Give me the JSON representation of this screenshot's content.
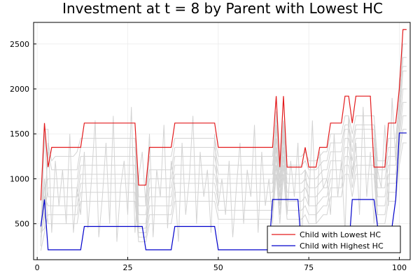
{
  "chart_data": {
    "type": "line",
    "title": "Investment at t = 8 by Parent with Lowest HC",
    "xlabel": "",
    "ylabel": "",
    "xlim": [
      -1,
      103
    ],
    "ylim": [
      100,
      2740
    ],
    "xticks": [
      0,
      25,
      50,
      75,
      100
    ],
    "yticks": [
      500,
      1000,
      1500,
      2000,
      2500
    ],
    "grid": true,
    "legend_position": "bottom-right",
    "colors": {
      "lowest": "#e31a1c",
      "highest": "#0000cc",
      "background": "#d3d3d3"
    },
    "series": [
      {
        "name": "Child with Lowest HC",
        "color": "#e31a1c",
        "points": [
          [
            1,
            760
          ],
          [
            2,
            1620
          ],
          [
            3,
            1130
          ],
          [
            4,
            1350
          ],
          [
            12,
            1350
          ],
          [
            13,
            1620
          ],
          [
            27,
            1620
          ],
          [
            28,
            930
          ],
          [
            30,
            930
          ],
          [
            31,
            1350
          ],
          [
            37,
            1350
          ],
          [
            38,
            1620
          ],
          [
            49,
            1620
          ],
          [
            50,
            1350
          ],
          [
            65,
            1350
          ],
          [
            66,
            1920
          ],
          [
            67,
            1130
          ],
          [
            68,
            1920
          ],
          [
            69,
            1130
          ],
          [
            73,
            1130
          ],
          [
            74,
            1350
          ],
          [
            75,
            1130
          ],
          [
            77,
            1130
          ],
          [
            78,
            1350
          ],
          [
            80,
            1350
          ],
          [
            81,
            1620
          ],
          [
            84,
            1620
          ],
          [
            85,
            1920
          ],
          [
            86,
            1920
          ],
          [
            87,
            1620
          ],
          [
            88,
            1920
          ],
          [
            92,
            1920
          ],
          [
            93,
            1130
          ],
          [
            96,
            1130
          ],
          [
            97,
            1620
          ],
          [
            99,
            1620
          ],
          [
            100,
            2000
          ],
          [
            101,
            2660
          ],
          [
            102,
            2660
          ]
        ]
      },
      {
        "name": "Child with Highest HC",
        "color": "#0000cc",
        "points": [
          [
            1,
            470
          ],
          [
            2,
            770
          ],
          [
            3,
            210
          ],
          [
            12,
            210
          ],
          [
            13,
            470
          ],
          [
            29,
            470
          ],
          [
            30,
            210
          ],
          [
            37,
            210
          ],
          [
            38,
            470
          ],
          [
            49,
            470
          ],
          [
            50,
            210
          ],
          [
            64,
            210
          ],
          [
            65,
            770
          ],
          [
            72,
            770
          ],
          [
            73,
            210
          ],
          [
            86,
            210
          ],
          [
            87,
            770
          ],
          [
            93,
            770
          ],
          [
            94,
            470
          ],
          [
            95,
            210
          ],
          [
            97,
            210
          ],
          [
            98,
            470
          ],
          [
            99,
            770
          ],
          [
            100,
            1510
          ],
          [
            102,
            1510
          ]
        ]
      }
    ],
    "background_series": [
      {
        "values": [
          400,
          450,
          1400,
          1200,
          1250,
          1250,
          1250,
          1250,
          1250,
          1250,
          1300,
          1450,
          1450,
          1450,
          1450,
          1450,
          1450,
          1450,
          1450,
          1450,
          1450,
          1450,
          1450,
          1450,
          1450,
          1450,
          1450,
          800,
          800,
          800,
          1250,
          1250,
          1250,
          1250,
          1250,
          1250,
          1250,
          1450,
          1450,
          1450,
          1450,
          1450,
          1450,
          1450,
          1450,
          1450,
          1450,
          1450,
          1450,
          1250,
          1250,
          1250,
          1250,
          1250,
          1250,
          1250,
          1250,
          1250,
          1250,
          1250,
          1250,
          1250,
          1250,
          1250,
          1250,
          1700,
          1200,
          1650,
          1250,
          1250,
          1250,
          1250,
          1250,
          1300,
          1200,
          1200,
          1200,
          1250,
          1300,
          1300,
          1500,
          1500,
          1500,
          1500,
          1700,
          1700,
          1500,
          1700,
          1700,
          1700,
          1700,
          1700,
          1700,
          1200,
          1200,
          1200,
          1450,
          1450,
          1450,
          1850,
          2500,
          2500
        ]
      },
      {
        "values": [
          300,
          700,
          1300,
          1100,
          1100,
          1100,
          1100,
          1100,
          1100,
          1100,
          1100,
          1350,
          1350,
          1350,
          1350,
          1350,
          1350,
          1350,
          1350,
          1350,
          1350,
          1350,
          1350,
          1350,
          1350,
          1350,
          1350,
          700,
          700,
          700,
          1100,
          1100,
          1100,
          1100,
          1100,
          1100,
          1100,
          1350,
          1350,
          1350,
          1350,
          1350,
          1350,
          1350,
          1350,
          1350,
          1350,
          1350,
          1350,
          1150,
          1150,
          1150,
          1150,
          1150,
          1150,
          1150,
          1150,
          1150,
          1150,
          1150,
          1150,
          1150,
          1150,
          1150,
          1150,
          1600,
          1100,
          1600,
          1150,
          1150,
          1150,
          1150,
          1150,
          1200,
          1100,
          1100,
          1100,
          1150,
          1200,
          1200,
          1400,
          1400,
          1400,
          1400,
          1600,
          1600,
          1400,
          1600,
          1600,
          1600,
          1600,
          1600,
          1600,
          1100,
          1100,
          1100,
          1350,
          1350,
          1350,
          1750,
          2350,
          2350
        ]
      },
      {
        "values": [
          450,
          900,
          1000,
          1000,
          1000,
          1000,
          1000,
          1000,
          1000,
          1000,
          1000,
          1250,
          1250,
          1250,
          1250,
          1250,
          1250,
          1250,
          1250,
          1250,
          1250,
          1250,
          1250,
          1250,
          1250,
          1250,
          1250,
          600,
          600,
          600,
          1000,
          1000,
          1000,
          1000,
          1000,
          1000,
          1000,
          1250,
          1250,
          1250,
          1250,
          1250,
          1250,
          1250,
          1250,
          1250,
          1250,
          1250,
          1250,
          1050,
          1050,
          1050,
          1050,
          1050,
          1050,
          1050,
          1050,
          1050,
          1050,
          1050,
          1050,
          1050,
          1050,
          1050,
          1050,
          1550,
          1000,
          1550,
          1050,
          1050,
          1050,
          1050,
          1050,
          1100,
          1000,
          1000,
          1000,
          1050,
          1100,
          1100,
          1300,
          1300,
          1300,
          1300,
          1550,
          1550,
          1300,
          1550,
          1550,
          1550,
          1550,
          1550,
          1550,
          1000,
          1000,
          1000,
          1250,
          1250,
          1250,
          1650,
          2200,
          2200
        ]
      },
      {
        "values": [
          350,
          600,
          900,
          900,
          900,
          900,
          900,
          900,
          900,
          900,
          900,
          1150,
          1150,
          1150,
          1150,
          1150,
          1150,
          1150,
          1150,
          1150,
          1150,
          1150,
          1150,
          1150,
          1150,
          1150,
          1150,
          500,
          500,
          500,
          900,
          900,
          900,
          900,
          900,
          900,
          900,
          1150,
          1150,
          1150,
          1150,
          1150,
          1150,
          1150,
          1150,
          1150,
          1150,
          1150,
          1150,
          950,
          950,
          950,
          950,
          950,
          950,
          950,
          950,
          950,
          950,
          950,
          950,
          950,
          950,
          950,
          950,
          1450,
          900,
          1450,
          950,
          950,
          950,
          950,
          950,
          1000,
          900,
          900,
          900,
          950,
          1000,
          1000,
          1200,
          1200,
          1200,
          1200,
          1450,
          1450,
          1200,
          1450,
          1450,
          1450,
          1450,
          1450,
          1450,
          900,
          900,
          900,
          1150,
          1150,
          1150,
          1550,
          2000,
          2000
        ]
      },
      {
        "values": [
          250,
          1500,
          800,
          800,
          800,
          800,
          800,
          800,
          800,
          800,
          800,
          1050,
          1050,
          1050,
          1050,
          1050,
          1050,
          1050,
          1050,
          1050,
          1050,
          1050,
          1050,
          1050,
          1050,
          1050,
          1050,
          450,
          450,
          450,
          800,
          800,
          800,
          800,
          800,
          800,
          800,
          1050,
          1050,
          1050,
          1050,
          1050,
          1050,
          1050,
          1050,
          1050,
          1050,
          1050,
          1050,
          850,
          850,
          850,
          850,
          850,
          850,
          850,
          850,
          850,
          850,
          850,
          850,
          850,
          850,
          850,
          850,
          1350,
          800,
          1350,
          850,
          850,
          850,
          850,
          850,
          900,
          800,
          800,
          800,
          850,
          900,
          900,
          1100,
          1100,
          1100,
          1100,
          1350,
          1350,
          1100,
          1350,
          1350,
          1350,
          1350,
          1350,
          1350,
          800,
          800,
          800,
          1050,
          1050,
          1050,
          1450,
          1850,
          1850
        ]
      },
      {
        "values": [
          500,
          800,
          700,
          700,
          700,
          700,
          700,
          700,
          700,
          700,
          700,
          950,
          950,
          950,
          950,
          950,
          950,
          950,
          950,
          950,
          950,
          950,
          950,
          950,
          950,
          950,
          950,
          400,
          400,
          400,
          700,
          700,
          700,
          700,
          700,
          700,
          700,
          950,
          950,
          950,
          950,
          950,
          950,
          950,
          950,
          950,
          950,
          950,
          950,
          750,
          750,
          750,
          750,
          750,
          750,
          750,
          750,
          750,
          750,
          750,
          750,
          750,
          750,
          750,
          750,
          1250,
          700,
          1250,
          750,
          750,
          750,
          750,
          750,
          800,
          700,
          700,
          700,
          750,
          800,
          800,
          1000,
          1000,
          1000,
          1000,
          1250,
          1250,
          1000,
          1250,
          1250,
          1250,
          1250,
          1250,
          1250,
          700,
          700,
          700,
          950,
          950,
          950,
          1350,
          1700,
          1700
        ]
      },
      {
        "values": [
          200,
          400,
          600,
          600,
          600,
          600,
          600,
          600,
          600,
          600,
          600,
          850,
          850,
          850,
          850,
          850,
          850,
          850,
          850,
          850,
          850,
          850,
          850,
          850,
          850,
          850,
          850,
          350,
          350,
          350,
          600,
          600,
          600,
          600,
          600,
          600,
          600,
          850,
          850,
          850,
          850,
          850,
          850,
          850,
          850,
          850,
          850,
          850,
          850,
          650,
          650,
          650,
          650,
          650,
          650,
          650,
          650,
          650,
          650,
          650,
          650,
          650,
          650,
          650,
          650,
          1150,
          600,
          1150,
          650,
          650,
          650,
          650,
          650,
          700,
          600,
          600,
          600,
          650,
          700,
          700,
          900,
          900,
          900,
          900,
          1150,
          1150,
          900,
          1150,
          1150,
          1150,
          1150,
          1150,
          1150,
          600,
          600,
          600,
          850,
          850,
          850,
          1250,
          1550,
          1550
        ]
      },
      {
        "values": [
          450,
          1000,
          500,
          500,
          500,
          500,
          500,
          500,
          500,
          500,
          500,
          750,
          750,
          750,
          750,
          750,
          750,
          750,
          750,
          750,
          750,
          750,
          750,
          750,
          750,
          750,
          750,
          300,
          300,
          300,
          500,
          500,
          500,
          500,
          500,
          500,
          500,
          750,
          750,
          750,
          750,
          750,
          750,
          750,
          750,
          750,
          750,
          750,
          750,
          550,
          550,
          550,
          550,
          550,
          550,
          550,
          550,
          550,
          550,
          550,
          550,
          550,
          550,
          550,
          550,
          1050,
          500,
          1050,
          550,
          550,
          550,
          550,
          550,
          600,
          500,
          500,
          500,
          550,
          600,
          600,
          800,
          800,
          800,
          800,
          1050,
          1050,
          800,
          1050,
          1050,
          1050,
          1050,
          1050,
          1050,
          500,
          500,
          500,
          750,
          750,
          750,
          1150,
          1400,
          1400
        ]
      },
      {
        "values": [
          400,
          1550,
          1550,
          400,
          1200,
          700,
          1100,
          500,
          1500,
          400,
          900,
          600,
          1300,
          450,
          1000,
          1650,
          350,
          800,
          1400,
          500,
          1700,
          300,
          900,
          1200,
          600,
          1800,
          400,
          1000,
          1300,
          700,
          1500,
          350,
          1100,
          800,
          1600,
          450,
          1200,
          900,
          300,
          1400,
          600,
          1000,
          1700,
          500,
          1300,
          800,
          1100,
          400,
          1500,
          700,
          1000,
          600,
          1200,
          350,
          900,
          1400,
          500,
          1100,
          800,
          1600,
          400,
          1300,
          700,
          1000,
          500,
          1750,
          900,
          1500,
          600,
          1200,
          800,
          1400,
          300,
          1100,
          700,
          1650,
          500,
          1300,
          900,
          1000,
          600,
          1500,
          800,
          1200,
          400,
          1700,
          1000,
          1400,
          600,
          1800,
          800,
          1300,
          500,
          1100,
          900,
          1600,
          700,
          1900,
          1200,
          2100,
          2250,
          2250
        ]
      }
    ]
  },
  "legend": {
    "items": [
      {
        "label": "Child with Lowest HC",
        "color": "#e31a1c"
      },
      {
        "label": "Child with Highest HC",
        "color": "#0000cc"
      }
    ]
  }
}
